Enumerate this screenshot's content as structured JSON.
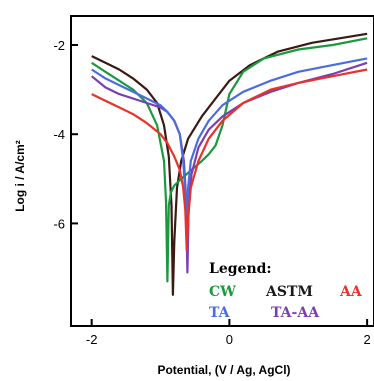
{
  "chart_data": {
    "type": "line",
    "xlabel": "Potential, (V / Ag, AgCl)",
    "ylabel": "Log i / A/cm²",
    "xlim": [
      -2.3,
      2.1
    ],
    "ylim": [
      -8.3,
      -1.35
    ],
    "xticks": [
      -2,
      0,
      2
    ],
    "yticks": [
      -2,
      -4,
      -6
    ],
    "xtick_labels": [
      "-2",
      "0",
      "2"
    ],
    "ytick_labels": [
      "-2",
      "-4",
      "-6"
    ],
    "grid": false,
    "legend": {
      "title": "Legend:",
      "placement": "bottom-right",
      "entries": [
        {
          "label": "CW",
          "color": "#1a9a3c"
        },
        {
          "label": "ASTM",
          "color": "#1a1a1a"
        },
        {
          "label": "AA",
          "color": "#e8322a"
        },
        {
          "label": "TA",
          "color": "#4a6ce0"
        },
        {
          "label": "TA-AA",
          "color": "#7a3fb0"
        }
      ]
    },
    "series": [
      {
        "name": "ASTM",
        "color": "#3a1a14",
        "x": [
          -2.0,
          -1.8,
          -1.6,
          -1.4,
          -1.2,
          -1.05,
          -0.95,
          -0.88,
          -0.84,
          -0.82,
          -0.8,
          -0.76,
          -0.7,
          -0.6,
          -0.4,
          -0.2,
          0.0,
          0.3,
          0.7,
          1.2,
          1.6,
          2.0
        ],
        "y": [
          -2.25,
          -2.4,
          -2.55,
          -2.75,
          -3.0,
          -3.3,
          -3.8,
          -4.5,
          -5.6,
          -7.6,
          -6.4,
          -5.2,
          -4.6,
          -4.1,
          -3.6,
          -3.2,
          -2.8,
          -2.45,
          -2.15,
          -1.95,
          -1.85,
          -1.75
        ]
      },
      {
        "name": "CW",
        "color": "#1a9a3c",
        "x": [
          -2.0,
          -1.8,
          -1.6,
          -1.4,
          -1.2,
          -1.05,
          -0.95,
          -0.92,
          -0.9,
          -0.88,
          -0.85,
          -0.8,
          -0.7,
          -0.55,
          -0.4,
          -0.3,
          -0.2,
          -0.1,
          0.0,
          0.2,
          0.5,
          1.0,
          1.5,
          2.0
        ],
        "y": [
          -2.4,
          -2.6,
          -2.8,
          -3.0,
          -3.3,
          -3.8,
          -4.6,
          -5.5,
          -7.3,
          -5.6,
          -5.3,
          -5.15,
          -5.0,
          -4.8,
          -4.6,
          -4.45,
          -4.25,
          -3.8,
          -3.1,
          -2.6,
          -2.3,
          -2.1,
          -2.0,
          -1.85
        ]
      },
      {
        "name": "TA-AA",
        "color": "#7a3fb0",
        "x": [
          -2.0,
          -1.8,
          -1.6,
          -1.4,
          -1.2,
          -1.0,
          -0.9,
          -0.8,
          -0.72,
          -0.66,
          -0.63,
          -0.61,
          -0.59,
          -0.55,
          -0.45,
          -0.3,
          -0.1,
          0.2,
          0.6,
          1.0,
          1.5,
          2.0
        ],
        "y": [
          -2.7,
          -2.95,
          -3.1,
          -3.2,
          -3.3,
          -3.4,
          -3.5,
          -3.7,
          -4.0,
          -4.6,
          -5.4,
          -7.1,
          -5.5,
          -4.9,
          -4.3,
          -3.9,
          -3.6,
          -3.3,
          -3.05,
          -2.85,
          -2.65,
          -2.4
        ]
      },
      {
        "name": "TA",
        "color": "#4a6ce0",
        "x": [
          -2.0,
          -1.8,
          -1.6,
          -1.4,
          -1.2,
          -1.0,
          -0.9,
          -0.8,
          -0.72,
          -0.67,
          -0.64,
          -0.62,
          -0.6,
          -0.56,
          -0.45,
          -0.3,
          -0.1,
          0.2,
          0.6,
          1.0,
          1.5,
          2.0
        ],
        "y": [
          -2.55,
          -2.75,
          -2.9,
          -3.05,
          -3.2,
          -3.35,
          -3.5,
          -3.7,
          -4.0,
          -4.6,
          -5.3,
          -5.8,
          -5.2,
          -4.6,
          -4.1,
          -3.7,
          -3.35,
          -3.05,
          -2.8,
          -2.6,
          -2.45,
          -2.3
        ]
      },
      {
        "name": "AA",
        "color": "#e8322a",
        "x": [
          -2.0,
          -1.8,
          -1.6,
          -1.4,
          -1.2,
          -1.0,
          -0.9,
          -0.8,
          -0.72,
          -0.67,
          -0.64,
          -0.62,
          -0.6,
          -0.56,
          -0.45,
          -0.3,
          -0.1,
          0.2,
          0.6,
          1.0,
          1.5,
          2.0
        ],
        "y": [
          -3.1,
          -3.25,
          -3.4,
          -3.55,
          -3.75,
          -4.0,
          -4.2,
          -4.5,
          -4.8,
          -5.2,
          -5.7,
          -6.6,
          -5.9,
          -5.2,
          -4.6,
          -4.1,
          -3.7,
          -3.3,
          -3.0,
          -2.85,
          -2.7,
          -2.55
        ]
      }
    ]
  }
}
